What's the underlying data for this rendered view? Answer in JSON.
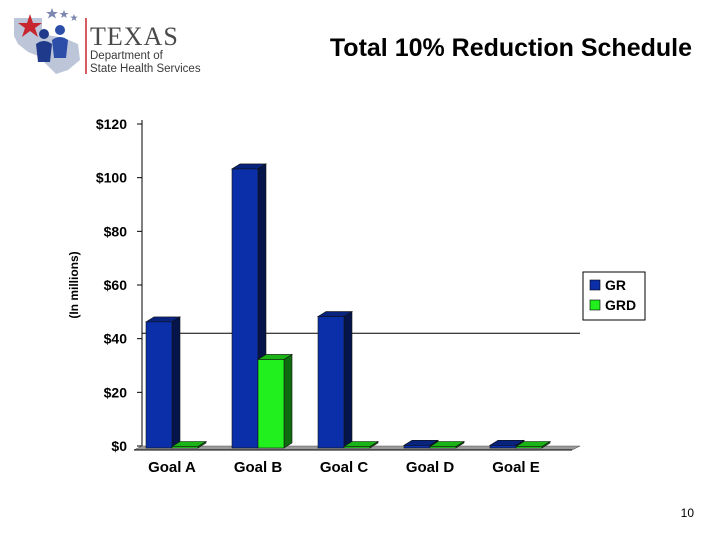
{
  "logo": {
    "name": "TEXAS",
    "line1": "Department of",
    "line2": "State Health Services"
  },
  "slide": {
    "title": "Total 10% Reduction Schedule",
    "page_number": "10"
  },
  "colors": {
    "gr": "#0a2fa8",
    "grd": "#22f01e",
    "floor": "#9a9a9a"
  },
  "chart_data": {
    "type": "bar",
    "categories": [
      "Goal A",
      "Goal B",
      "Goal C",
      "Goal D",
      "Goal E"
    ],
    "series": [
      {
        "name": "GR",
        "values": [
          47,
          104,
          49,
          1,
          1
        ]
      },
      {
        "name": "GRD",
        "values": [
          0,
          33,
          0,
          0,
          0
        ]
      }
    ],
    "ylabel": "(In millions)",
    "ylim": [
      0,
      120
    ],
    "yticks": [
      "$0",
      "$20",
      "$40",
      "$60",
      "$80",
      "$100",
      "$120"
    ],
    "ytick_values": [
      0,
      20,
      40,
      60,
      80,
      100,
      120
    ],
    "legend": "right",
    "grid": false,
    "reference_line_value": 42
  }
}
